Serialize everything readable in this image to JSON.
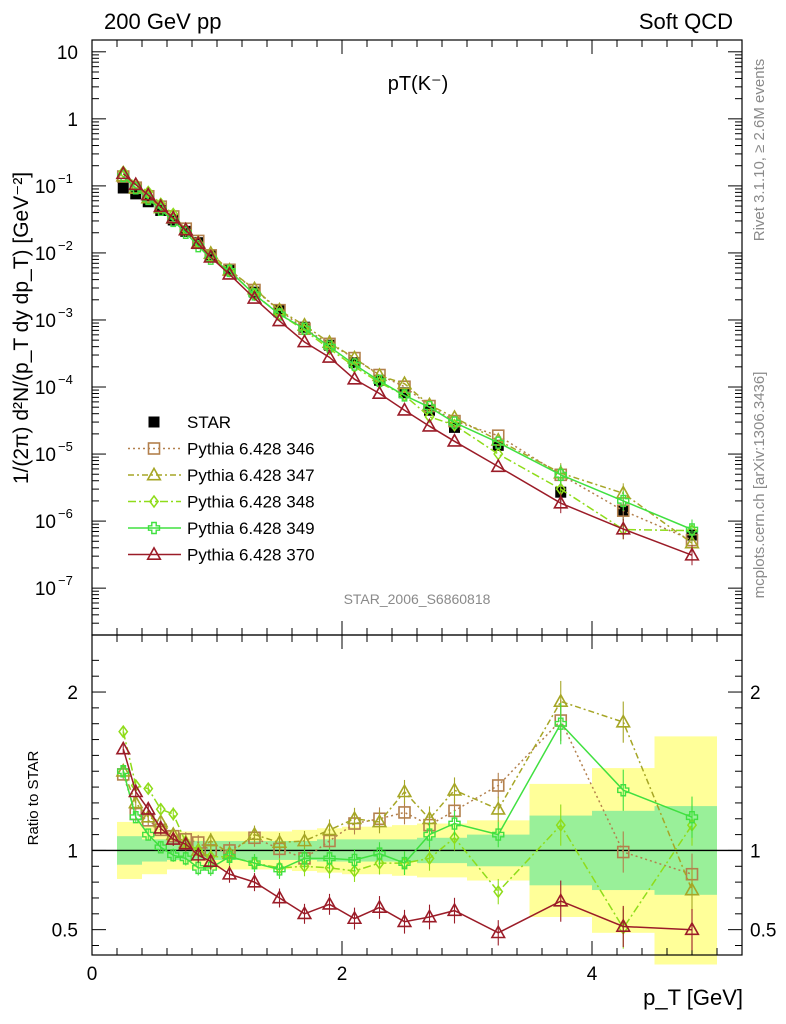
{
  "header": {
    "left": "200 GeV pp",
    "right": "Soft QCD"
  },
  "plot_title": "pT(K⁻)",
  "side_text": {
    "top": "Rivet 3.1.10, ≥ 2.6M events",
    "bottom": "mcplots.cern.ch [arXiv:1306.3436]"
  },
  "watermark": "STAR_2006_S6860818",
  "legend": [
    {
      "label": "STAR",
      "color": "#000000",
      "marker": "square-filled",
      "dash": ""
    },
    {
      "label": "Pythia 6.428 346",
      "color": "#b3804d",
      "marker": "square-open",
      "dash": "2,3"
    },
    {
      "label": "Pythia 6.428 347",
      "color": "#a6a626",
      "marker": "triangle-open",
      "dash": "6,3,2,3"
    },
    {
      "label": "Pythia 6.428 348",
      "color": "#8fdc1a",
      "marker": "diamond-open",
      "dash": "8,3,2,3"
    },
    {
      "label": "Pythia 6.428 349",
      "color": "#40e040",
      "marker": "cross-open",
      "dash": ""
    },
    {
      "label": "Pythia 6.428 370",
      "color": "#9b1c28",
      "marker": "triangle-open",
      "dash": ""
    }
  ],
  "chart_data": [
    {
      "type": "scatter",
      "name": "main",
      "ylabel": "1/(2π) d²N/(p_T dy dp_T) [GeV⁻²]",
      "yscale": "log",
      "xlim": [
        0,
        5.2
      ],
      "ylim": [
        2e-08,
        15
      ],
      "y_ticks": [
        {
          "value": 1e-07,
          "base": "10",
          "exp": "−7"
        },
        {
          "value": 1e-06,
          "base": "10",
          "exp": "−6"
        },
        {
          "value": 1e-05,
          "base": "10",
          "exp": "−5"
        },
        {
          "value": 0.0001,
          "base": "10",
          "exp": "−4"
        },
        {
          "value": 0.001,
          "base": "10",
          "exp": "−3"
        },
        {
          "value": 0.01,
          "base": "10",
          "exp": "−2"
        },
        {
          "value": 0.1,
          "base": "10",
          "exp": "−1"
        },
        {
          "value": 1,
          "base": "1",
          "exp": ""
        },
        {
          "value": 10,
          "base": "10",
          "exp": ""
        }
      ],
      "x": [
        0.25,
        0.35,
        0.45,
        0.55,
        0.65,
        0.75,
        0.85,
        0.95,
        1.1,
        1.3,
        1.5,
        1.7,
        1.9,
        2.1,
        2.3,
        2.5,
        2.7,
        2.9,
        3.25,
        3.75,
        4.25,
        4.8
      ],
      "series": [
        {
          "name": "STAR",
          "values": [
            0.093,
            0.076,
            0.058,
            0.043,
            0.031,
            0.021,
            0.0142,
            0.0092,
            0.0056,
            0.0026,
            0.00138,
            0.00078,
            0.00042,
            0.00023,
            0.000126,
            8.2e-05,
            4.5e-05,
            2.5e-05,
            1.35e-05,
            2.7e-06,
            1.45e-06,
            6.2e-07
          ]
        },
        {
          "name": "Pythia 6.428 346",
          "values": [
            0.138,
            0.094,
            0.07,
            0.049,
            0.035,
            0.023,
            0.0151,
            0.0092,
            0.0056,
            0.0028,
            0.0014,
            0.00074,
            0.00044,
            0.00027,
            0.000151,
            0.000101,
            5.2e-05,
            3.1e-05,
            1.88e-05,
            4.9e-06,
            1.43e-06,
            5.2e-07
          ]
        },
        {
          "name": "Pythia 6.428 347",
          "values": [
            0.14,
            0.092,
            0.066,
            0.047,
            0.033,
            0.022,
            0.0142,
            0.0098,
            0.0055,
            0.0029,
            0.0014,
            0.00083,
            0.00046,
            0.00027,
            0.000148,
            0.000112,
            5.4e-05,
            3.5e-05,
            1.6e-05,
            5.2e-06,
            2.6e-06,
            4.7e-07
          ]
        },
        {
          "name": "Pythia 6.428 348",
          "values": [
            0.162,
            0.107,
            0.081,
            0.054,
            0.038,
            0.022,
            0.0142,
            0.0088,
            0.0054,
            0.0024,
            0.00123,
            0.0007,
            0.000372,
            0.000201,
            0.000116,
            7.5e-05,
            3.6e-05,
            2.7e-05,
            1e-05,
            3e-06,
            7.5e-07,
            7.2e-07
          ]
        },
        {
          "name": "Pythia 6.428 349",
          "values": [
            0.14,
            0.092,
            0.064,
            0.044,
            0.03,
            0.02,
            0.0126,
            0.0082,
            0.0054,
            0.0024,
            0.00121,
            0.00074,
            0.0004,
            0.000216,
            0.000123,
            7.5e-05,
            5e-05,
            2.95e-05,
            1.48e-05,
            4.9e-06,
            2e-06,
            7.5e-07
          ]
        },
        {
          "name": "Pythia 6.428 370",
          "values": [
            0.152,
            0.104,
            0.073,
            0.049,
            0.033,
            0.022,
            0.0138,
            0.0086,
            0.0048,
            0.0021,
            0.00097,
            0.00047,
            0.000277,
            0.000131,
            8e-05,
            4.5e-05,
            2.6e-05,
            1.55e-05,
            6.5e-06,
            1.85e-06,
            7.6e-07,
            3.1e-07
          ]
        }
      ]
    },
    {
      "type": "scatter",
      "name": "ratio",
      "ylabel": "Ratio to STAR",
      "xlabel": "p_T [GeV]",
      "xlim": [
        0,
        5.2
      ],
      "ylim": [
        0.34,
        2.36
      ],
      "x_ticks": [
        0,
        2,
        4
      ],
      "y_ticks": [
        0.5,
        1,
        2
      ],
      "reference_line": 1,
      "band_edges": [
        0.2,
        0.4,
        0.6,
        0.8,
        1.0,
        1.2,
        1.4,
        1.6,
        1.8,
        2.0,
        2.2,
        2.4,
        2.6,
        2.8,
        3.0,
        3.5,
        4.0,
        4.5,
        5.0
      ],
      "band_inner": [
        0.09,
        0.07,
        0.06,
        0.06,
        0.06,
        0.06,
        0.06,
        0.06,
        0.07,
        0.07,
        0.07,
        0.07,
        0.08,
        0.08,
        0.1,
        0.22,
        0.25,
        0.28
      ],
      "band_outer": [
        0.18,
        0.15,
        0.12,
        0.12,
        0.12,
        0.12,
        0.12,
        0.13,
        0.14,
        0.15,
        0.15,
        0.16,
        0.17,
        0.17,
        0.19,
        0.42,
        0.52,
        0.72
      ],
      "x": [
        0.25,
        0.35,
        0.45,
        0.55,
        0.65,
        0.75,
        0.85,
        0.95,
        1.1,
        1.3,
        1.5,
        1.7,
        1.9,
        2.1,
        2.3,
        2.5,
        2.7,
        2.9,
        3.25,
        3.75,
        4.25,
        4.8
      ],
      "series": [
        {
          "name": "Pythia 6.428 346",
          "values": [
            1.48,
            1.23,
            1.19,
            1.13,
            1.09,
            1.07,
            1.05,
            1.0,
            1.0,
            1.08,
            1.01,
            0.95,
            1.06,
            1.17,
            1.2,
            1.24,
            1.16,
            1.25,
            1.41,
            1.82,
            0.99,
            0.85
          ]
        },
        {
          "name": "Pythia 6.428 347",
          "values": [
            1.5,
            1.3,
            1.21,
            1.18,
            1.1,
            1.05,
            1.0,
            1.06,
            0.98,
            1.1,
            1.05,
            1.06,
            1.13,
            1.2,
            1.18,
            1.37,
            1.2,
            1.38,
            1.26,
            1.94,
            1.81,
            0.75
          ]
        },
        {
          "name": "Pythia 6.428 348",
          "values": [
            1.75,
            1.41,
            1.39,
            1.26,
            1.23,
            1.05,
            1.0,
            0.96,
            0.96,
            0.92,
            0.89,
            0.9,
            0.89,
            0.87,
            0.92,
            0.92,
            0.95,
            1.08,
            0.74,
            1.16,
            0.51,
            1.16
          ]
        },
        {
          "name": "Pythia 6.428 349",
          "values": [
            1.5,
            1.21,
            1.1,
            1.02,
            0.97,
            0.95,
            0.89,
            0.89,
            0.96,
            0.92,
            0.88,
            0.95,
            0.95,
            0.94,
            0.98,
            0.92,
            1.1,
            1.17,
            1.1,
            1.8,
            1.38,
            1.21
          ]
        },
        {
          "name": "Pythia 6.428 370",
          "values": [
            1.64,
            1.37,
            1.26,
            1.14,
            1.07,
            1.04,
            0.97,
            0.93,
            0.85,
            0.8,
            0.7,
            0.6,
            0.66,
            0.57,
            0.64,
            0.55,
            0.58,
            0.62,
            0.48,
            0.68,
            0.52,
            0.5
          ]
        }
      ]
    }
  ]
}
